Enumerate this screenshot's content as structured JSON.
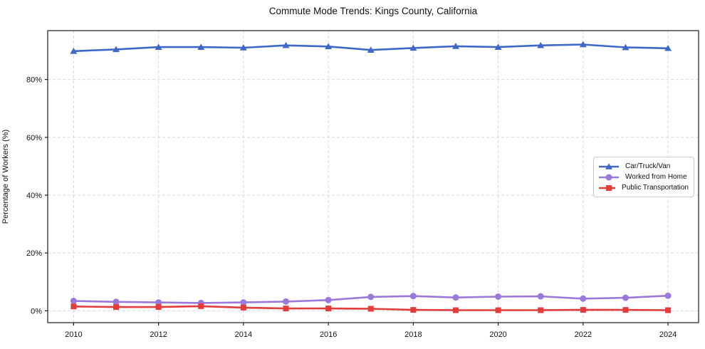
{
  "chart_data": {
    "type": "line",
    "title": "Commute Mode Trends: Kings County, California",
    "xlabel": "",
    "ylabel": "Percentage of Workers (%)",
    "x": [
      2010,
      2011,
      2012,
      2013,
      2014,
      2015,
      2016,
      2017,
      2018,
      2019,
      2020,
      2021,
      2022,
      2023,
      2024
    ],
    "x_ticks": [
      2010,
      2012,
      2014,
      2016,
      2018,
      2020,
      2022,
      2024
    ],
    "x_tick_labels": [
      "2010",
      "2012",
      "2014",
      "2016",
      "2018",
      "2020",
      "2022",
      "2024"
    ],
    "y_ticks": [
      0,
      20,
      40,
      60,
      80
    ],
    "y_tick_labels": [
      "0%",
      "20%",
      "40%",
      "60%",
      "80%"
    ],
    "xlim": [
      2009.39,
      2024.72
    ],
    "ylim": [
      -4.1,
      96.9
    ],
    "grid": true,
    "grid_style": "dashed",
    "legend_position": "center-right",
    "series": [
      {
        "name": "Car/Truck/Van",
        "color": "#3d68c8",
        "marker": "triangle",
        "values": [
          89.8,
          90.4,
          91.2,
          91.2,
          91.0,
          91.8,
          91.4,
          90.2,
          90.9,
          91.5,
          91.2,
          91.8,
          92.1,
          91.1,
          90.8
        ]
      },
      {
        "name": "Worked from Home",
        "color": "#9b79db",
        "marker": "circle",
        "values": [
          3.4,
          3.1,
          2.9,
          2.7,
          2.9,
          3.2,
          3.7,
          4.8,
          5.1,
          4.6,
          4.9,
          5.0,
          4.2,
          4.5,
          5.2
        ]
      },
      {
        "name": "Public Transportation",
        "color": "#e23c3c",
        "marker": "square",
        "values": [
          1.5,
          1.3,
          1.3,
          1.6,
          1.1,
          0.8,
          0.8,
          0.7,
          0.3,
          0.2,
          0.2,
          0.2,
          0.3,
          0.3,
          0.2
        ]
      }
    ],
    "colors": {
      "grid": "#d9d9d9",
      "axis": "#1a1a1a",
      "text": "#111111",
      "legend_border": "#cccccc",
      "background": "#ffffff"
    }
  }
}
